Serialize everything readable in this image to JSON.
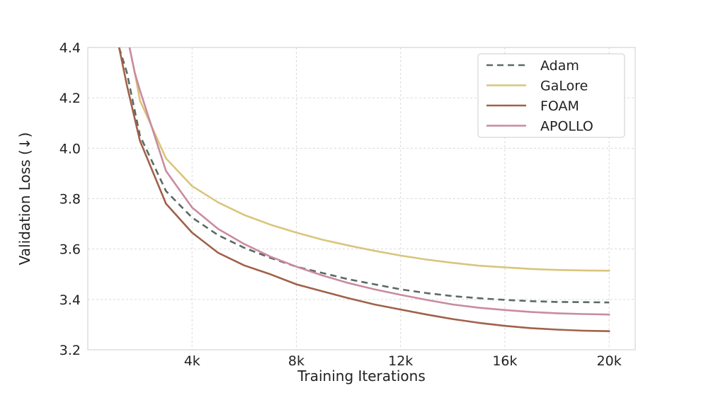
{
  "chart_data": {
    "type": "line",
    "xlabel": "Training Iterations",
    "ylabel": "Validation Loss (↓)",
    "xlim": [
      0,
      21000
    ],
    "ylim": [
      3.2,
      4.4
    ],
    "xticks": [
      4000,
      8000,
      12000,
      16000,
      20000
    ],
    "xtick_labels": [
      "4k",
      "8k",
      "12k",
      "16k",
      "20k"
    ],
    "yticks": [
      3.2,
      3.4,
      3.6,
      3.8,
      4.0,
      4.2,
      4.4
    ],
    "ytick_labels": [
      "3.2",
      "3.4",
      "3.6",
      "3.8",
      "4.0",
      "4.2",
      "4.4"
    ],
    "grid": true,
    "legend_position": "top-right",
    "series": [
      {
        "name": "Adam",
        "color": "#5b6b64",
        "dashed": true,
        "x": [
          1200,
          1500,
          2000,
          3000,
          4000,
          5000,
          6000,
          7000,
          8000,
          9000,
          10000,
          11000,
          12000,
          13000,
          14000,
          15000,
          16000,
          17000,
          18000,
          19000,
          20000
        ],
        "y": [
          4.4,
          4.3,
          4.05,
          3.83,
          3.725,
          3.655,
          3.605,
          3.565,
          3.53,
          3.505,
          3.48,
          3.46,
          3.44,
          3.425,
          3.413,
          3.405,
          3.398,
          3.393,
          3.39,
          3.389,
          3.388
        ]
      },
      {
        "name": "GaLore",
        "color": "#d9c57c",
        "dashed": false,
        "x": [
          1600,
          1800,
          2000,
          3000,
          4000,
          5000,
          6000,
          7000,
          8000,
          9000,
          10000,
          11000,
          12000,
          13000,
          14000,
          15000,
          16000,
          17000,
          18000,
          19000,
          20000
        ],
        "y": [
          4.4,
          4.3,
          4.19,
          3.96,
          3.85,
          3.785,
          3.735,
          3.697,
          3.665,
          3.637,
          3.614,
          3.593,
          3.574,
          3.558,
          3.545,
          3.534,
          3.527,
          3.521,
          3.517,
          3.515,
          3.514
        ]
      },
      {
        "name": "FOAM",
        "color": "#a0614a",
        "dashed": false,
        "x": [
          1200,
          1500,
          2000,
          3000,
          4000,
          5000,
          6000,
          7000,
          8000,
          9000,
          10000,
          11000,
          12000,
          13000,
          14000,
          15000,
          16000,
          17000,
          18000,
          19000,
          20000
        ],
        "y": [
          4.4,
          4.25,
          4.03,
          3.78,
          3.665,
          3.585,
          3.535,
          3.5,
          3.46,
          3.432,
          3.405,
          3.38,
          3.36,
          3.34,
          3.322,
          3.307,
          3.295,
          3.286,
          3.28,
          3.276,
          3.274
        ]
      },
      {
        "name": "APOLLO",
        "color": "#c98ba0",
        "dashed": false,
        "x": [
          1600,
          1800,
          2000,
          3000,
          4000,
          5000,
          6000,
          7000,
          8000,
          9000,
          10000,
          11000,
          12000,
          13000,
          14000,
          15000,
          16000,
          17000,
          18000,
          19000,
          20000
        ],
        "y": [
          4.4,
          4.3,
          4.23,
          3.91,
          3.765,
          3.68,
          3.62,
          3.57,
          3.53,
          3.495,
          3.465,
          3.44,
          3.418,
          3.398,
          3.38,
          3.367,
          3.358,
          3.35,
          3.345,
          3.342,
          3.34
        ]
      }
    ]
  }
}
